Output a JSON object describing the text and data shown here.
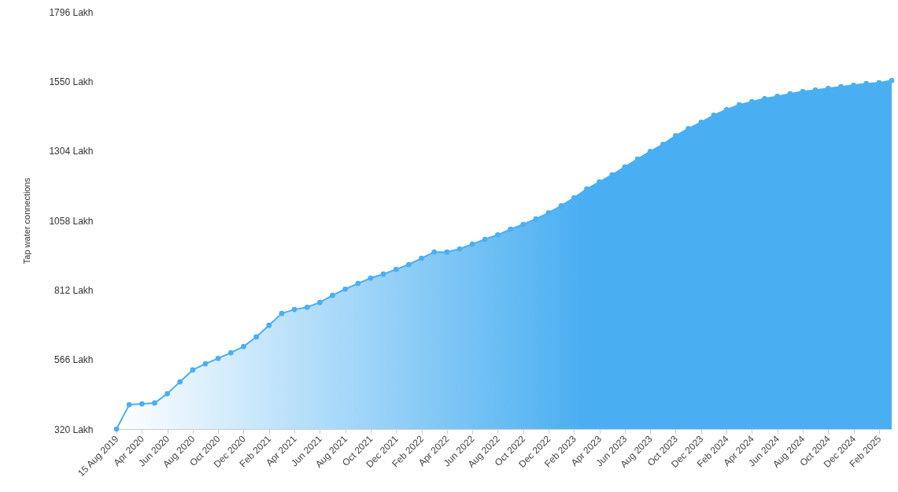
{
  "chart_data": {
    "type": "area",
    "ylabel": "Tap water connections",
    "categories": [
      "15 Aug 2019",
      null,
      "Apr 2020",
      null,
      "Jun 2020",
      null,
      "Aug 2020",
      null,
      "Oct 2020",
      null,
      "Dec 2020",
      null,
      "Feb 2021",
      null,
      "Apr 2021",
      null,
      "Jun 2021",
      null,
      "Aug 2021",
      null,
      "Oct 2021",
      null,
      "Dec 2021",
      null,
      "Feb 2022",
      null,
      "Apr 2022",
      null,
      "Jun 2022",
      null,
      "Aug 2022",
      null,
      "Oct 2022",
      null,
      "Dec 2022",
      null,
      "Feb 2023",
      null,
      "Apr 2023",
      null,
      "Jun 2023",
      null,
      "Aug 2023",
      null,
      "Oct 2023",
      null,
      "Dec 2023",
      null,
      "Feb 2024",
      null,
      "Apr 2024",
      null,
      "Jun 2024",
      null,
      "Aug 2024",
      null,
      "Oct 2024",
      null,
      "Dec 2024",
      null,
      "Feb 2025",
      null
    ],
    "series": [
      {
        "color": "#4aaff2",
        "values": [
          320,
          406,
          409,
          412,
          445,
          487,
          529,
          551,
          570,
          590,
          612,
          646,
          687,
          729,
          743,
          751,
          768,
          793,
          815,
          835,
          854,
          868,
          885,
          902,
          924,
          946,
          946,
          957,
          974,
          991,
          1007,
          1027,
          1044,
          1063,
          1085,
          1110,
          1138,
          1169,
          1194,
          1219,
          1247,
          1275,
          1302,
          1327,
          1358,
          1383,
          1405,
          1430,
          1450,
          1467,
          1478,
          1489,
          1497,
          1506,
          1514,
          1519,
          1525,
          1531,
          1536,
          1542,
          1545,
          1553
        ]
      }
    ],
    "ylim": [
      320,
      1796
    ],
    "yticks": [
      {
        "value": 320,
        "label": "320 Lakh"
      },
      {
        "value": 566,
        "label": "566 Lakh"
      },
      {
        "value": 812,
        "label": "812 Lakh"
      },
      {
        "value": 1058,
        "label": "1058 Lakh"
      },
      {
        "value": 1304,
        "label": "1304 Lakh"
      },
      {
        "value": 1550,
        "label": "1550 Lakh"
      },
      {
        "value": 1796,
        "label": "1796 Lakh"
      }
    ],
    "grid": false,
    "marker": "circle"
  }
}
